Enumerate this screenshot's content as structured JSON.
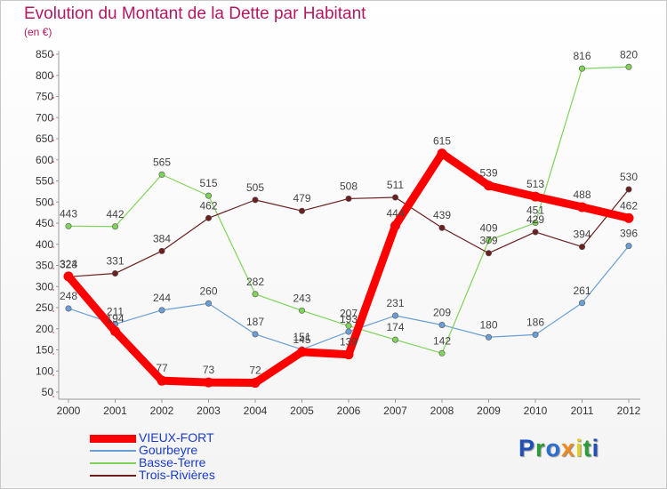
{
  "title": "Evolution du Montant de la Dette par Habitant",
  "subtitle": "(en €)",
  "logo": {
    "text": "Proxiti",
    "letters": [
      {
        "ch": "P",
        "color": "#1f4fb8"
      },
      {
        "ch": "r",
        "color": "#2a9c3a"
      },
      {
        "ch": "o",
        "color": "#2a6fd1"
      },
      {
        "ch": "x",
        "color": "#f08a1c"
      },
      {
        "ch": "i",
        "color": "#e6d11c"
      },
      {
        "ch": "t",
        "color": "#2a9c3a"
      },
      {
        "ch": "i",
        "color": "#1f4fb8"
      }
    ]
  },
  "chart_data": {
    "type": "line",
    "title": "Evolution du Montant de la Dette par Habitant",
    "subtitle": "(en €)",
    "xlabel": "",
    "ylabel": "",
    "x": [
      "2000",
      "2001",
      "2002",
      "2003",
      "2004",
      "2005",
      "2006",
      "2007",
      "2008",
      "2009",
      "2010",
      "2011",
      "2012"
    ],
    "ylim": [
      50,
      850
    ],
    "yticks": [
      50,
      100,
      150,
      200,
      250,
      300,
      350,
      400,
      450,
      500,
      550,
      600,
      650,
      700,
      750,
      800,
      850
    ],
    "grid": false,
    "legend": "bottom-left",
    "series": [
      {
        "name": "VIEUX-FORT",
        "color": "#ff0000",
        "emphasis": true,
        "values": [
          324,
          194,
          77,
          73,
          72,
          145,
          139,
          444,
          615,
          539,
          513,
          488,
          462
        ]
      },
      {
        "name": "Gourbeyre",
        "color": "#6a9ed6",
        "values": [
          248,
          211,
          244,
          260,
          187,
          151,
          193,
          231,
          209,
          180,
          186,
          261,
          396
        ]
      },
      {
        "name": "Basse-Terre",
        "color": "#7fd35a",
        "values": [
          443,
          442,
          565,
          515,
          282,
          243,
          207,
          174,
          142,
          409,
          451,
          816,
          820
        ]
      },
      {
        "name": "Trois-Rivières",
        "color": "#6b1f1f",
        "values": [
          323,
          331,
          384,
          462,
          505,
          479,
          508,
          511,
          439,
          379,
          429,
          394,
          530
        ]
      }
    ]
  }
}
